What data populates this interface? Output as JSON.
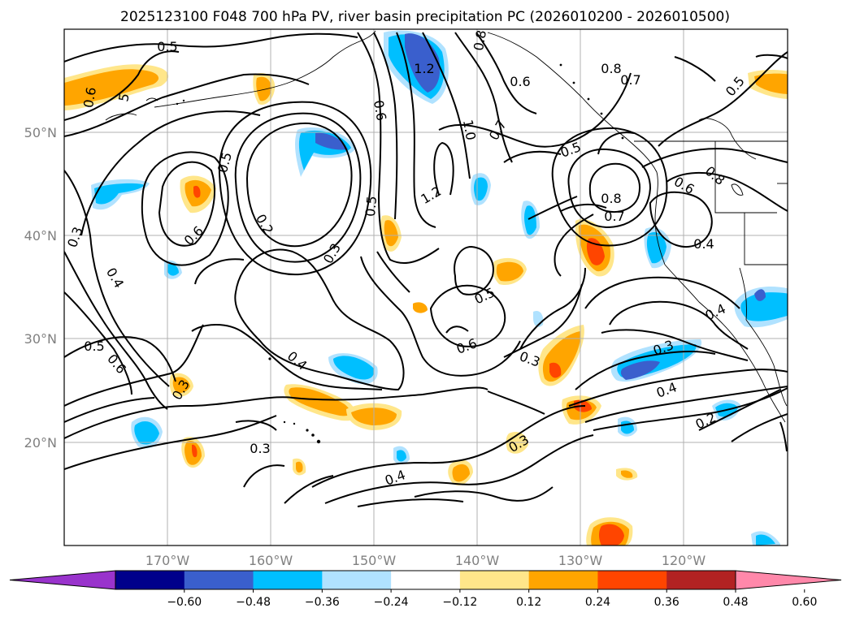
{
  "title": "2025123100 F048 700 hPa PV, river basin precipitation PC (2026010200 - 2026010500)",
  "lon_labels": [
    "170°W",
    "160°W",
    "150°W",
    "140°W",
    "130°W",
    "120°W"
  ],
  "lat_labels": [
    "50°N",
    "40°N",
    "30°N",
    "20°N"
  ],
  "colorbar": {
    "ticks": [
      "−0.60",
      "−0.48",
      "−0.36",
      "−0.24",
      "−0.12",
      "0.12",
      "0.24",
      "0.36",
      "0.48",
      "0.60"
    ],
    "colors": [
      "#9933cc",
      "#00008b",
      "#3a5fcd",
      "#00bfff",
      "#b0e2ff",
      "#ffffff",
      "#ffe68a",
      "#ffa500",
      "#ff4500",
      "#b22222",
      "#ff88aa"
    ]
  },
  "contour_labels": [
    {
      "text": "0.5"
    },
    {
      "text": "0.6"
    },
    {
      "text": "5"
    },
    {
      "text": "1.2"
    },
    {
      "text": "0.8"
    },
    {
      "text": "0.6"
    },
    {
      "text": "0.8"
    },
    {
      "text": "0.7"
    },
    {
      "text": "0.5"
    },
    {
      "text": "0.6"
    },
    {
      "text": "1.0"
    },
    {
      "text": "0.7"
    },
    {
      "text": "0.5"
    },
    {
      "text": "0.5"
    },
    {
      "text": "0.8"
    },
    {
      "text": "0.6"
    },
    {
      "text": "1.2"
    },
    {
      "text": "0.8"
    },
    {
      "text": "0.7"
    },
    {
      "text": "0.4"
    },
    {
      "text": "0.3"
    },
    {
      "text": "0.6"
    },
    {
      "text": "0.2"
    },
    {
      "text": "0.5"
    },
    {
      "text": "0.3"
    },
    {
      "text": "0.4"
    },
    {
      "text": "0.5"
    },
    {
      "text": "0.6"
    },
    {
      "text": "0.4"
    },
    {
      "text": "0.6"
    },
    {
      "text": "0.3"
    },
    {
      "text": "0.3"
    },
    {
      "text": "0.4"
    },
    {
      "text": "0.3"
    },
    {
      "text": "0.4"
    },
    {
      "text": "0.2"
    },
    {
      "text": "0.3"
    },
    {
      "text": "0.3"
    },
    {
      "text": "0.4"
    },
    {
      "text": "0.5"
    }
  ]
}
